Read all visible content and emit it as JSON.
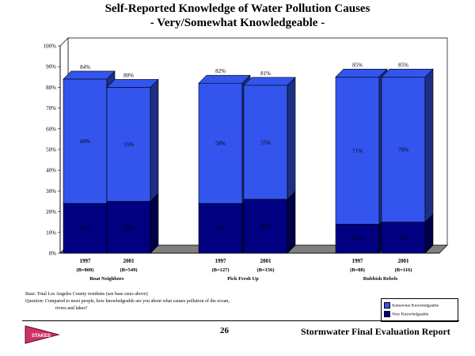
{
  "title_line1": "Self-Reported Knowledge of Water Pollution Causes",
  "title_line2": "- Very/Somewhat Knowledgeable -",
  "base_note": "Base: Total Los Angeles County residents (see base sizes above)",
  "question_line1": "Question:  Compared to most people, how knowledgeable are you about what causes pollution of the ocean,",
  "question_line2": "rivers and lakes?",
  "page_number": "26",
  "report_title": "Stormwater Final Evaluation Report",
  "logo_text": "STAKES",
  "colors": {
    "somewhat": "#3355ee",
    "very": "#000080",
    "floor": "#808080"
  },
  "chart_data": {
    "type": "bar",
    "stacked": true,
    "ylim": [
      0,
      100
    ],
    "yticks": [
      "0%",
      "10%",
      "20%",
      "30%",
      "40%",
      "50%",
      "60%",
      "70%",
      "80%",
      "90%",
      "100%"
    ],
    "grid": false,
    "legend_position": "bottom-right",
    "categories": [
      "1997",
      "2001",
      "1997",
      "2001",
      "1997",
      "2001"
    ],
    "bases": [
      "(B=800)",
      "(B=549)",
      "(B=127)",
      "(B=156)",
      "(B=88)",
      "(B=116)"
    ],
    "groups": [
      {
        "label": "Boat Neighbors",
        "bars": [
          0,
          1
        ]
      },
      {
        "label": "Pick Fresh Up",
        "bars": [
          2,
          3
        ]
      },
      {
        "label": "Rubbish Rebels",
        "bars": [
          4,
          5
        ]
      }
    ],
    "series": [
      {
        "name": "Very Knowledgeable",
        "values": [
          24,
          25,
          24,
          26,
          14,
          15
        ],
        "labels": [
          "24%",
          "25%",
          "24%",
          "26%",
          "14%",
          "15%"
        ]
      },
      {
        "name": "Somewhat Knowledgeable",
        "values": [
          60,
          55,
          58,
          55,
          71,
          70
        ],
        "labels": [
          "60%",
          "55%",
          "58%",
          "55%",
          "71%",
          "70%"
        ]
      }
    ],
    "totals": [
      84,
      80,
      82,
      81,
      85,
      85
    ],
    "total_labels": [
      "84%",
      "80%",
      "82%",
      "81%",
      "85%",
      "85%"
    ],
    "legend": [
      "Somewhat Knowledgeable",
      "Very Knowledgeable"
    ]
  }
}
